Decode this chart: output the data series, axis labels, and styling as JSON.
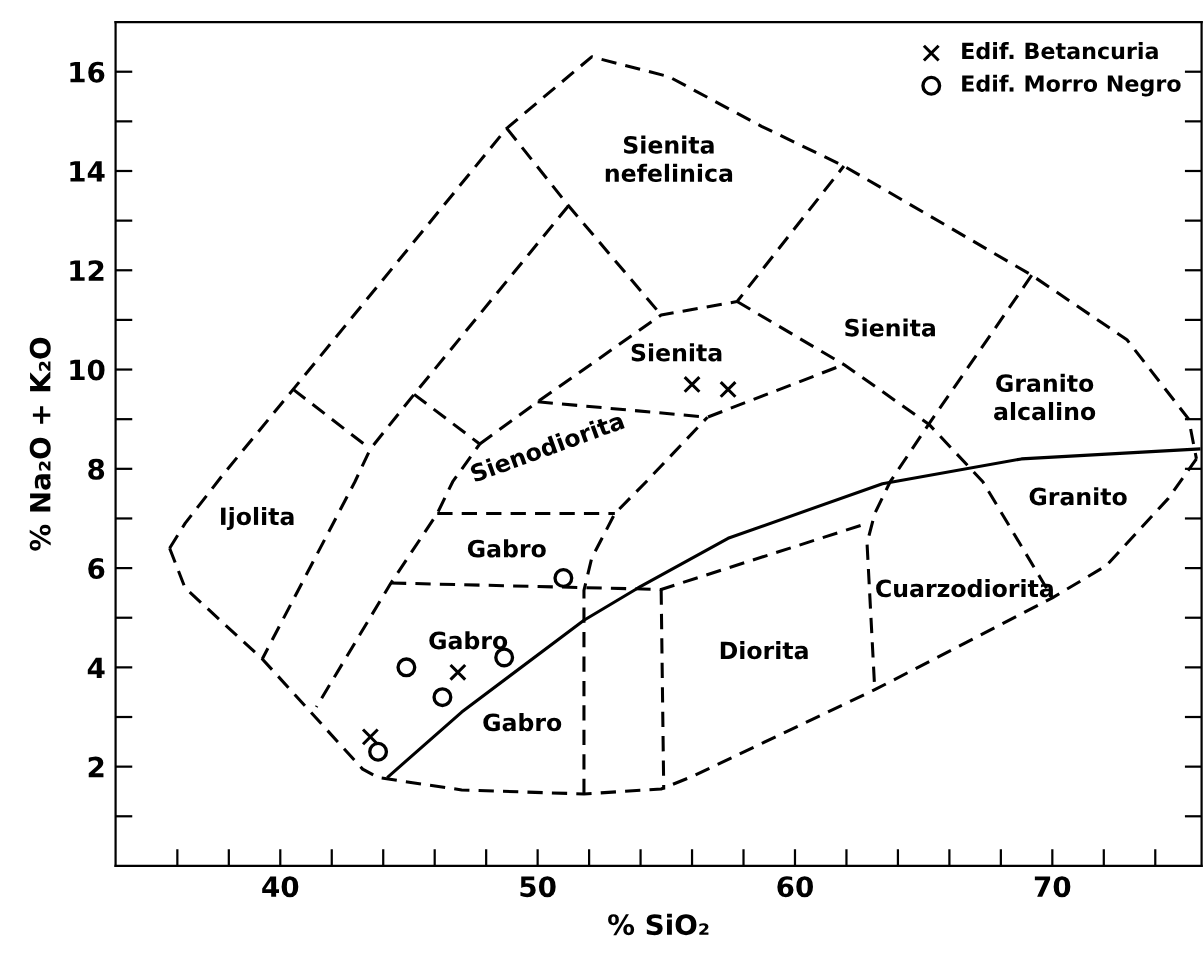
{
  "chart_data": {
    "type": "scatter",
    "xlabel": "% SiO₂",
    "ylabel": "% Na₂O + K₂O",
    "xlim": [
      33.6,
      75.8
    ],
    "ylim": [
      0,
      17
    ],
    "xticks": [
      {
        "value": 36,
        "label": null
      },
      {
        "value": 38,
        "label": null
      },
      40,
      {
        "value": 42,
        "label": null
      },
      {
        "value": 44,
        "label": null
      },
      {
        "value": 46,
        "label": null
      },
      {
        "value": 48,
        "label": null
      },
      50,
      {
        "value": 52,
        "label": null
      },
      {
        "value": 54,
        "label": null
      },
      {
        "value": 56,
        "label": null
      },
      {
        "value": 58,
        "label": null
      },
      60,
      {
        "value": 62,
        "label": null
      },
      {
        "value": 64,
        "label": null
      },
      {
        "value": 66,
        "label": null
      },
      {
        "value": 68,
        "label": null
      },
      70,
      {
        "value": 72,
        "label": null
      },
      {
        "value": 74,
        "label": null
      }
    ],
    "yticks": [
      {
        "value": 1,
        "label": null
      },
      2,
      {
        "value": 3,
        "label": null
      },
      4,
      {
        "value": 5,
        "label": null
      },
      6,
      {
        "value": 7,
        "label": null
      },
      8,
      {
        "value": 9,
        "label": null
      },
      10,
      {
        "value": 11,
        "label": null
      },
      12,
      {
        "value": 13,
        "label": null
      },
      14,
      {
        "value": 15,
        "label": null
      },
      16
    ],
    "grid": false,
    "legend": "top right",
    "series": [
      {
        "type": "line",
        "color": "#000000",
        "line_style": "solid",
        "marker": "none",
        "x": [
          44.2,
          47.05,
          51.8,
          53.9,
          57.4,
          63.4,
          68.8,
          75.7
        ],
        "values": [
          1.8,
          3.1,
          4.95,
          5.6,
          6.6,
          7.7,
          8.2,
          8.4
        ]
      },
      {
        "type": "line",
        "color": "#000000",
        "line_style": "dashed",
        "marker": "none",
        "x": [
          35.7,
          36.3,
          37.8,
          40.5,
          48.8,
          52.1,
          55.1,
          58.7,
          61.9,
          69.2,
          72.9,
          75.3,
          75.6
        ],
        "values": [
          6.4,
          6.9,
          7.9,
          9.6,
          14.86,
          16.3,
          15.9,
          14.9,
          14.1,
          11.9,
          10.6,
          9.0,
          8.2
        ]
      },
      {
        "type": "line",
        "color": "#000000",
        "line_style": "dashed",
        "marker": "none",
        "x": [
          35.7,
          36.3,
          39.3,
          43.2,
          43.8,
          47.05,
          51.8,
          54.8,
          56.0,
          63.1,
          70.0,
          72.1,
          74.5,
          75.6
        ],
        "values": [
          6.4,
          5.6,
          4.17,
          1.95,
          1.78,
          1.53,
          1.45,
          1.55,
          1.8,
          3.55,
          5.4,
          6.05,
          7.4,
          8.2
        ]
      },
      {
        "type": "line",
        "color": "#000000",
        "line_style": "dashed",
        "marker": "none",
        "x": [
          40.5,
          43.5
        ],
        "values": [
          9.6,
          8.4
        ]
      },
      {
        "type": "line",
        "color": "#000000",
        "line_style": "dashed",
        "marker": "none",
        "x": [
          51.2,
          45.2,
          43.5,
          42.9,
          39.3
        ],
        "values": [
          13.3,
          9.5,
          8.4,
          7.74,
          4.17
        ]
      },
      {
        "type": "line",
        "color": "#000000",
        "line_style": "dashed",
        "marker": "none",
        "x": [
          48.8,
          51.2,
          54.8
        ],
        "values": [
          14.86,
          13.3,
          11.1
        ]
      },
      {
        "type": "line",
        "color": "#000000",
        "line_style": "dashed",
        "marker": "none",
        "x": [
          45.2,
          47.75,
          46.7,
          46.1,
          44.3,
          41.4
        ],
        "values": [
          9.5,
          8.5,
          7.74,
          7.1,
          5.7,
          3.2
        ]
      },
      {
        "type": "line",
        "color": "#000000",
        "line_style": "dashed",
        "marker": "none",
        "x": [
          47.75,
          50.0,
          54.8,
          57.75,
          61.9
        ],
        "values": [
          8.5,
          9.35,
          11.1,
          11.37,
          14.1
        ]
      },
      {
        "type": "line",
        "color": "#000000",
        "line_style": "dashed",
        "marker": "none",
        "x": [
          57.75,
          61.9,
          65.2,
          67.3,
          70.0
        ],
        "values": [
          11.37,
          10.1,
          8.9,
          7.74,
          5.4
        ]
      },
      {
        "type": "line",
        "color": "#000000",
        "line_style": "dashed",
        "marker": "none",
        "x": [
          69.2,
          65.2,
          63.7,
          63.1,
          62.8,
          63.1
        ],
        "values": [
          11.9,
          8.9,
          7.74,
          7.1,
          6.5,
          3.55
        ]
      },
      {
        "type": "line",
        "color": "#000000",
        "line_style": "dashed",
        "marker": "none",
        "x": [
          50.0,
          56.6,
          61.9
        ],
        "values": [
          9.35,
          9.04,
          10.1
        ]
      },
      {
        "type": "line",
        "color": "#000000",
        "line_style": "dashed",
        "marker": "none",
        "x": [
          51.8,
          51.8,
          52.1,
          53.0,
          54.2,
          56.6
        ],
        "values": [
          1.45,
          5.55,
          6.2,
          7.1,
          7.73,
          9.04
        ]
      },
      {
        "type": "line",
        "color": "#000000",
        "line_style": "dashed",
        "marker": "none",
        "x": [
          46.1,
          53.0
        ],
        "values": [
          7.1,
          7.1
        ]
      },
      {
        "type": "line",
        "color": "#000000",
        "line_style": "dashed",
        "marker": "none",
        "x": [
          44.3,
          54.8,
          62.8
        ],
        "values": [
          5.7,
          5.57,
          6.9
        ]
      },
      {
        "type": "line",
        "color": "#000000",
        "line_style": "dashed",
        "marker": "none",
        "x": [
          54.8,
          54.9
        ],
        "values": [
          5.57,
          1.54
        ]
      },
      {
        "name": "Edif. Betancuria",
        "color": "#000000",
        "marker": "cross",
        "x": [
          56.0,
          57.4,
          46.9,
          43.5
        ],
        "values": [
          9.7,
          9.6,
          3.9,
          2.6
        ]
      },
      {
        "name": "Edif. Morro Negro",
        "color": "#000000",
        "marker": "circle",
        "x": [
          51.0,
          44.9,
          46.3,
          48.7,
          43.8
        ],
        "values": [
          5.8,
          4.0,
          3.4,
          4.2,
          2.3
        ]
      }
    ],
    "annotations": [
      "Sienita\nnefelinica",
      "Sienita",
      "Sienita",
      "Granito\nalcalino",
      "Sienodiorita",
      "Ijolita",
      "Gabro",
      "Gabro",
      "Gabro",
      "Diorita",
      "Cuarzodiorita",
      "Granito"
    ]
  }
}
